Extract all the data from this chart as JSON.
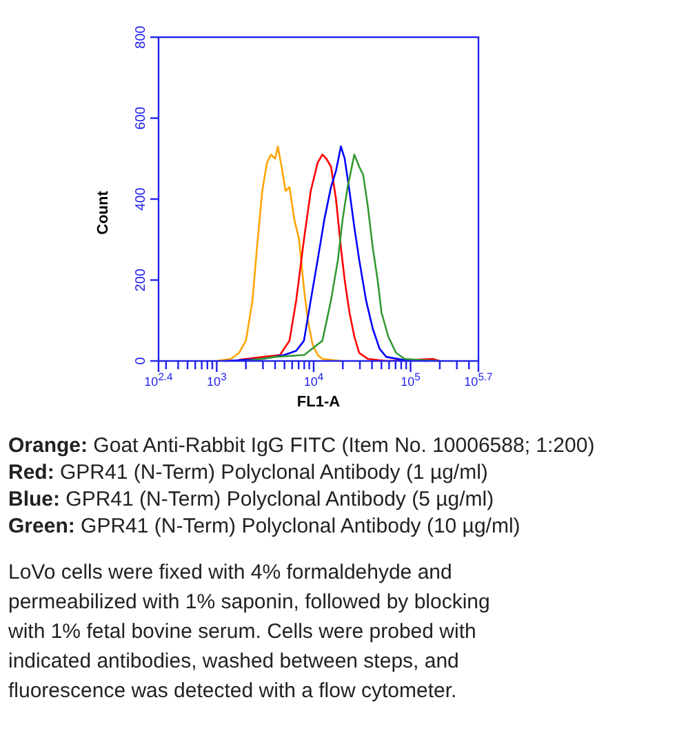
{
  "chart_data": {
    "type": "line",
    "xlabel": "FL1-A",
    "ylabel": "Count",
    "log": "x",
    "grid": false,
    "line_style": "solid",
    "xlim": [
      251.19,
      501187
    ],
    "xticks": [
      {
        "value": 251.19,
        "label": "10$^{2.4}$"
      },
      {
        "value": 300,
        "label": null
      },
      {
        "value": 400,
        "label": null
      },
      {
        "value": 500,
        "label": null
      },
      {
        "value": 600,
        "label": null
      },
      {
        "value": 700,
        "label": null
      },
      {
        "value": 800,
        "label": null
      },
      {
        "value": 900,
        "label": null
      },
      {
        "value": 1000,
        "label": "10$^{3}$"
      },
      {
        "value": 2000,
        "label": null
      },
      {
        "value": 3000,
        "label": null
      },
      {
        "value": 4000,
        "label": null
      },
      {
        "value": 5000,
        "label": null
      },
      {
        "value": 6000,
        "label": null
      },
      {
        "value": 7000,
        "label": null
      },
      {
        "value": 8000,
        "label": null
      },
      {
        "value": 9000,
        "label": null
      },
      {
        "value": 10000,
        "label": "10$^{4}$"
      },
      {
        "value": 20000,
        "label": null
      },
      {
        "value": 30000,
        "label": null
      },
      {
        "value": 40000,
        "label": null
      },
      {
        "value": 50000,
        "label": null
      },
      {
        "value": 60000,
        "label": null
      },
      {
        "value": 70000,
        "label": null
      },
      {
        "value": 80000,
        "label": null
      },
      {
        "value": 90000,
        "label": null
      },
      {
        "value": 100000,
        "label": "10$^{5}$"
      },
      {
        "value": 200000,
        "label": null
      },
      {
        "value": 300000,
        "label": null
      },
      {
        "value": 400000,
        "label": null
      },
      {
        "value": 501187,
        "label": "10$^{5.7}$"
      }
    ],
    "ylim": [
      0,
      800
    ],
    "yticks": [
      0,
      200,
      400,
      600,
      800
    ],
    "series": [
      {
        "color": "#ffa500",
        "x": [
          980,
          1400,
          1700,
          2000,
          2340,
          2600,
          2950,
          3300,
          3630,
          4000,
          4270,
          4670,
          5130,
          5630,
          6310,
          7080,
          7940,
          8710,
          9770,
          11000,
          12300,
          19100
        ],
        "values": [
          0,
          5,
          20,
          50,
          150,
          280,
          420,
          490,
          510,
          500,
          530,
          480,
          420,
          430,
          350,
          300,
          180,
          100,
          40,
          15,
          5,
          0
        ]
      },
      {
        "color": "#ff0000",
        "x": [
          1700,
          3000,
          4500,
          5630,
          6610,
          7940,
          9330,
          11000,
          12300,
          13500,
          15100,
          17000,
          19100,
          20900,
          23400,
          26300,
          29500,
          36300,
          56200,
          170000,
          200000
        ],
        "values": [
          3,
          10,
          15,
          50,
          150,
          300,
          420,
          490,
          510,
          500,
          480,
          400,
          280,
          200,
          120,
          60,
          20,
          5,
          0,
          5,
          0
        ]
      },
      {
        "color": "#0000ff",
        "x": [
          1200,
          3000,
          5000,
          6600,
          7940,
          9330,
          11000,
          12900,
          15100,
          17000,
          19100,
          20900,
          23400,
          26300,
          29500,
          34700,
          40700,
          47900,
          56200,
          87100,
          150000
        ],
        "values": [
          0,
          5,
          15,
          25,
          50,
          150,
          250,
          350,
          430,
          470,
          530,
          500,
          420,
          330,
          250,
          150,
          80,
          30,
          10,
          2,
          0
        ]
      },
      {
        "color": "#339933",
        "x": [
          2000,
          4000,
          8000,
          12300,
          15100,
          17800,
          19900,
          22400,
          26300,
          29500,
          32400,
          36300,
          40700,
          45700,
          50100,
          58900,
          70800,
          87100,
          135000,
          200000
        ],
        "values": [
          0,
          10,
          15,
          50,
          150,
          250,
          350,
          430,
          510,
          480,
          460,
          380,
          280,
          200,
          120,
          60,
          20,
          5,
          2,
          0
        ]
      }
    ],
    "annotations": [
      "Orange: Goat Anti-Rabbit IgG FITC (Item No. 10006588; 1:200)",
      "Red: GPR41 (N-Term) Polyclonal Antibody (1 µg/ml)",
      "Blue: GPR41 (N-Term) Polyclonal Antibody (5 µg/ml)",
      "Green: GPR41 (N-Term) Polyclonal Antibody (10 µg/ml)",
      "LoVo cells were fixed with 4% formaldehyde and permeabilized with 1% saponin, followed by blocking with 1% fetal bovine serum. Cells were probed with indicated antibodies, washed between steps, and fluorescence was detected with a flow cytometer."
    ]
  }
}
